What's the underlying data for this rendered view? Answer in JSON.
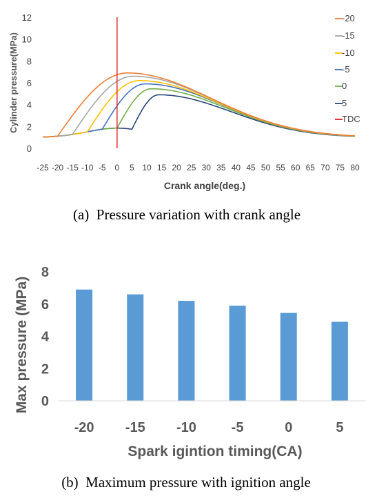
{
  "chart_data": [
    {
      "type": "line",
      "xlabel": "Crank angle(deg.)",
      "ylabel": "Cylinder pressure(MPa)",
      "xlim": [
        -25,
        80
      ],
      "ylim": [
        0,
        12
      ],
      "x_ticks": [
        "-25",
        "-20",
        "-15",
        "-10",
        "-5",
        "0",
        "5",
        "10",
        "15",
        "20",
        "25",
        "30",
        "35",
        "40",
        "45",
        "50",
        "55",
        "60",
        "65",
        "70",
        "75",
        "80"
      ],
      "y_ticks": [
        "0",
        "2",
        "4",
        "6",
        "8",
        "10",
        "12"
      ],
      "grid": false,
      "legend_position": "right",
      "caption": "(a)  Pressure variation with crank angle",
      "series": [
        {
          "name": "-20",
          "color": "#ED7D31",
          "ignition": -20,
          "peak_x": 3.5,
          "peak_y": 6.9
        },
        {
          "name": "-15",
          "color": "#A5A5A5",
          "ignition": -15,
          "peak_x": 5.5,
          "peak_y": 6.6
        },
        {
          "name": "-10",
          "color": "#FFC000",
          "ignition": -10,
          "peak_x": 7.5,
          "peak_y": 6.2
        },
        {
          "name": "-5",
          "color": "#4472C4",
          "ignition": -5,
          "peak_x": 9.5,
          "peak_y": 5.9
        },
        {
          "name": "0",
          "color": "#70AD47",
          "ignition": 0,
          "peak_x": 11.5,
          "peak_y": 5.45
        },
        {
          "name": "5",
          "color": "#264478",
          "ignition": 5,
          "peak_x": 14,
          "peak_y": 4.9
        },
        {
          "name": "TDC",
          "color": "#E02020",
          "type": "vertical",
          "x": 0
        }
      ]
    },
    {
      "type": "bar",
      "categories": [
        "-20",
        "-15",
        "-10",
        "-5",
        "0",
        "5"
      ],
      "values": [
        6.9,
        6.6,
        6.2,
        5.9,
        5.45,
        4.9
      ],
      "xlabel": "Spark igintion timing(CA)",
      "ylabel": "Max pressure (MPa)",
      "ylim": [
        0,
        8
      ],
      "y_ticks": [
        "0",
        "2",
        "4",
        "6",
        "8"
      ],
      "grid": false,
      "color": "#5B9BD5",
      "caption": "(b)  Maximum pressure with ignition angle"
    }
  ]
}
